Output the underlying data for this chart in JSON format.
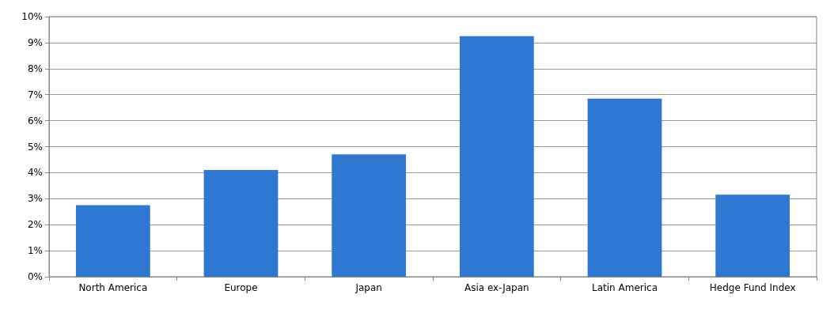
{
  "chart_data": {
    "type": "bar",
    "categories": [
      "North America",
      "Europe",
      "Japan",
      "Asia ex-Japan",
      "Latin America",
      "Hedge Fund Index"
    ],
    "values": [
      2.75,
      4.1,
      4.7,
      9.25,
      6.85,
      3.15
    ],
    "color": "#2e78d2",
    "ylim": [
      0,
      10
    ],
    "yticks": [
      {
        "value": 0,
        "label": "0%"
      },
      {
        "value": 1,
        "label": "1%"
      },
      {
        "value": 2,
        "label": "2%"
      },
      {
        "value": 3,
        "label": "3%"
      },
      {
        "value": 4,
        "label": "4%"
      },
      {
        "value": 5,
        "label": "5%"
      },
      {
        "value": 6,
        "label": "6%"
      },
      {
        "value": 7,
        "label": "7%"
      },
      {
        "value": 8,
        "label": "8%"
      },
      {
        "value": 9,
        "label": "9%"
      },
      {
        "value": 10,
        "label": "10%"
      }
    ],
    "grid": "y"
  }
}
